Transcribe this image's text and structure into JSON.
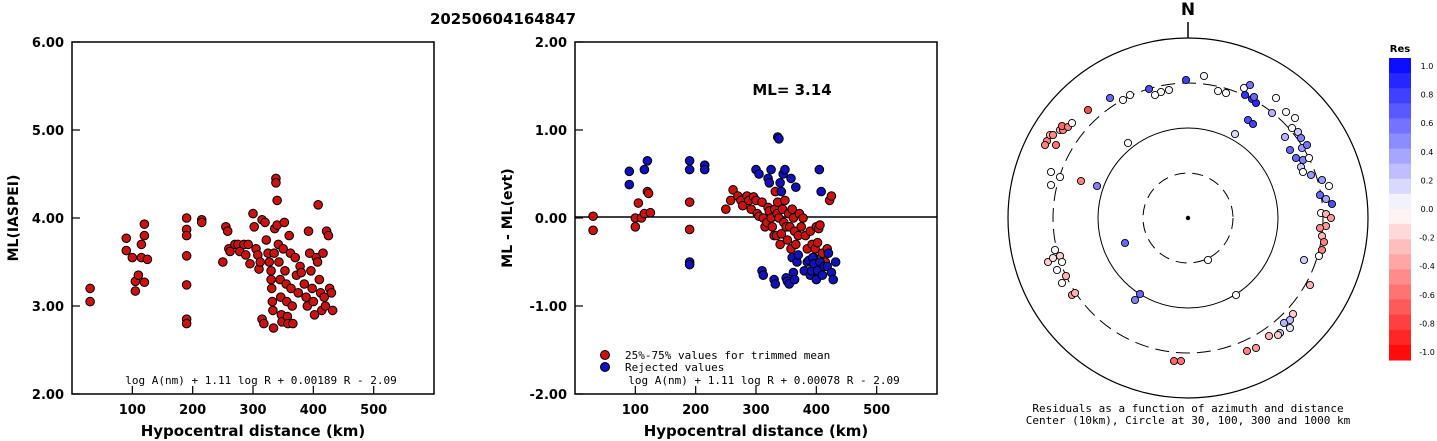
{
  "title": "20250604164847",
  "left_panel": {
    "ylabel": "ML(IASPEI)",
    "xlabel": "Hypocentral distance (km)",
    "formula": "log A(nm) + 1.11 log R + 0.00189 R - 2.09",
    "y_ticks": [
      "6.00",
      "5.00",
      "4.00",
      "3.00",
      "2.00"
    ],
    "x_ticks": [
      "100",
      "200",
      "300",
      "400",
      "500"
    ]
  },
  "mid_panel": {
    "ylabel": "ML - ML(evt)",
    "xlabel": "Hypocentral distance (km)",
    "ml_text": "ML= 3.14",
    "legend_red": "25%-75% values for trimmed mean",
    "legend_blue": "Rejected values",
    "formula": "log A(nm) + 1.11 log R + 0.00078 R - 2.09",
    "y_ticks": [
      "2.00",
      "1.00",
      "0.00",
      "-1.00",
      "-2.00"
    ],
    "x_ticks": [
      "100",
      "200",
      "300",
      "400",
      "500"
    ]
  },
  "polar_panel": {
    "north": "N",
    "caption1": "Residuals as a function of azimuth and distance",
    "caption2": "Center (10km), Circle at 30, 100, 300 and 1000 km"
  },
  "colorbar": {
    "title": "Res",
    "labels": [
      "1.0",
      "0.8",
      "0.6",
      "0.4",
      "0.2",
      "0.0",
      "-0.2",
      "-0.4",
      "-0.6",
      "-0.8",
      "-1.0"
    ]
  },
  "colors": {
    "red": "#cc1111",
    "blue": "#1111bb",
    "accepted": "#cc1111",
    "rejected": "#1111bb"
  },
  "chart_data": [
    {
      "type": "scatter",
      "title": "20250604164847",
      "xlabel": "Hypocentral distance (km)",
      "ylabel": "ML(IASPEI)",
      "xlim": [
        0,
        600
      ],
      "ylim": [
        2,
        6
      ],
      "points": [
        [
          30,
          3.2
        ],
        [
          30,
          3.05
        ],
        [
          90,
          3.77
        ],
        [
          90,
          3.63
        ],
        [
          100,
          3.55
        ],
        [
          105,
          3.17
        ],
        [
          105,
          3.28
        ],
        [
          110,
          3.35
        ],
        [
          115,
          3.7
        ],
        [
          115,
          3.55
        ],
        [
          120,
          3.27
        ],
        [
          120,
          3.8
        ],
        [
          120,
          3.93
        ],
        [
          125,
          3.53
        ],
        [
          190,
          4.0
        ],
        [
          190,
          3.87
        ],
        [
          190,
          3.8
        ],
        [
          190,
          3.57
        ],
        [
          190,
          3.24
        ],
        [
          190,
          2.85
        ],
        [
          190,
          2.8
        ],
        [
          215,
          3.98
        ],
        [
          215,
          3.95
        ],
        [
          250,
          3.5
        ],
        [
          255,
          3.9
        ],
        [
          258,
          3.85
        ],
        [
          260,
          3.65
        ],
        [
          262,
          3.62
        ],
        [
          270,
          3.7
        ],
        [
          275,
          3.7
        ],
        [
          278,
          3.62
        ],
        [
          285,
          3.7
        ],
        [
          288,
          3.58
        ],
        [
          292,
          3.7
        ],
        [
          295,
          3.48
        ],
        [
          300,
          4.05
        ],
        [
          302,
          3.9
        ],
        [
          305,
          3.65
        ],
        [
          308,
          3.58
        ],
        [
          310,
          3.42
        ],
        [
          312,
          3.5
        ],
        [
          315,
          3.98
        ],
        [
          315,
          2.85
        ],
        [
          318,
          2.8
        ],
        [
          320,
          3.95
        ],
        [
          322,
          3.75
        ],
        [
          325,
          3.6
        ],
        [
          327,
          3.5
        ],
        [
          330,
          3.4
        ],
        [
          330,
          3.3
        ],
        [
          331,
          3.2
        ],
        [
          332,
          3.05
        ],
        [
          333,
          2.95
        ],
        [
          334,
          2.75
        ],
        [
          335,
          3.6
        ],
        [
          336,
          3.88
        ],
        [
          338,
          4.45
        ],
        [
          338,
          4.4
        ],
        [
          340,
          4.2
        ],
        [
          340,
          3.92
        ],
        [
          342,
          3.7
        ],
        [
          343,
          3.5
        ],
        [
          345,
          3.3
        ],
        [
          346,
          3.1
        ],
        [
          347,
          2.9
        ],
        [
          348,
          2.82
        ],
        [
          350,
          3.65
        ],
        [
          352,
          3.95
        ],
        [
          353,
          3.4
        ],
        [
          355,
          3.25
        ],
        [
          356,
          3.05
        ],
        [
          357,
          2.88
        ],
        [
          358,
          2.8
        ],
        [
          360,
          3.8
        ],
        [
          362,
          3.6
        ],
        [
          363,
          3.2
        ],
        [
          365,
          3.0
        ],
        [
          366,
          2.8
        ],
        [
          370,
          3.55
        ],
        [
          372,
          3.35
        ],
        [
          375,
          3.15
        ],
        [
          378,
          3.45
        ],
        [
          380,
          3.38
        ],
        [
          385,
          3.25
        ],
        [
          388,
          3.1
        ],
        [
          390,
          3.0
        ],
        [
          392,
          3.85
        ],
        [
          394,
          3.6
        ],
        [
          396,
          3.4
        ],
        [
          398,
          3.2
        ],
        [
          400,
          3.05
        ],
        [
          402,
          2.9
        ],
        [
          405,
          3.55
        ],
        [
          407,
          3.5
        ],
        [
          408,
          4.15
        ],
        [
          410,
          3.3
        ],
        [
          412,
          3.15
        ],
        [
          414,
          2.95
        ],
        [
          416,
          3.6
        ],
        [
          418,
          3.1
        ],
        [
          420,
          3.0
        ],
        [
          422,
          3.85
        ],
        [
          425,
          3.8
        ],
        [
          427,
          3.2
        ],
        [
          430,
          3.15
        ],
        [
          432,
          2.95
        ]
      ]
    },
    {
      "type": "scatter",
      "xlabel": "Hypocentral distance (km)",
      "ylabel": "ML - ML(evt)",
      "xlim": [
        0,
        600
      ],
      "ylim": [
        -2,
        2
      ],
      "ML": 3.14,
      "series": [
        {
          "name": "25%-75% values for trimmed mean",
          "points": [
            [
              30,
              0.02
            ],
            [
              30,
              -0.14
            ],
            [
              100,
              0.0
            ],
            [
              100,
              -0.1
            ],
            [
              105,
              0.17
            ],
            [
              110,
              0.0
            ],
            [
              115,
              0.05
            ],
            [
              120,
              0.3
            ],
            [
              122,
              0.28
            ],
            [
              125,
              0.06
            ],
            [
              190,
              0.18
            ],
            [
              190,
              -0.13
            ],
            [
              250,
              0.1
            ],
            [
              258,
              0.2
            ],
            [
              262,
              0.32
            ],
            [
              270,
              0.25
            ],
            [
              275,
              0.2
            ],
            [
              278,
              0.14
            ],
            [
              285,
              0.25
            ],
            [
              288,
              0.2
            ],
            [
              292,
              0.1
            ],
            [
              296,
              0.24
            ],
            [
              300,
              0.2
            ],
            [
              302,
              0.05
            ],
            [
              305,
              0.02
            ],
            [
              310,
              0.18
            ],
            [
              312,
              0.0
            ],
            [
              315,
              -0.1
            ],
            [
              318,
              -0.05
            ],
            [
              320,
              0.12
            ],
            [
              322,
              0.08
            ],
            [
              325,
              0.0
            ],
            [
              327,
              -0.1
            ],
            [
              330,
              -0.2
            ],
            [
              331,
              0.1
            ],
            [
              332,
              0.3
            ],
            [
              334,
              -0.2
            ],
            [
              335,
              0.05
            ],
            [
              336,
              0.18
            ],
            [
              338,
              0.0
            ],
            [
              340,
              -0.3
            ],
            [
              342,
              -0.18
            ],
            [
              344,
              0.1
            ],
            [
              346,
              -0.05
            ],
            [
              348,
              0.2
            ],
            [
              350,
              -0.1
            ],
            [
              352,
              -0.25
            ],
            [
              354,
              0.05
            ],
            [
              356,
              -0.1
            ],
            [
              358,
              -0.35
            ],
            [
              360,
              0.1
            ],
            [
              362,
              0.0
            ],
            [
              364,
              -0.15
            ],
            [
              366,
              -0.3
            ],
            [
              370,
              -0.2
            ],
            [
              372,
              0.05
            ],
            [
              375,
              -0.1
            ],
            [
              378,
              0.0
            ],
            [
              382,
              -0.2
            ],
            [
              385,
              -0.35
            ],
            [
              390,
              -0.15
            ],
            [
              393,
              -0.3
            ],
            [
              396,
              -0.45
            ],
            [
              398,
              -0.35
            ],
            [
              400,
              -0.1
            ],
            [
              402,
              -0.28
            ],
            [
              404,
              -0.12
            ],
            [
              406,
              -0.08
            ],
            [
              410,
              -0.4
            ],
            [
              415,
              -0.5
            ],
            [
              418,
              -0.35
            ],
            [
              422,
              0.2
            ],
            [
              425,
              0.25
            ]
          ]
        },
        {
          "name": "Rejected values",
          "points": [
            [
              90,
              0.53
            ],
            [
              90,
              0.38
            ],
            [
              115,
              0.55
            ],
            [
              120,
              0.65
            ],
            [
              190,
              0.65
            ],
            [
              190,
              0.55
            ],
            [
              190,
              -0.5
            ],
            [
              190,
              -0.53
            ],
            [
              215,
              0.6
            ],
            [
              215,
              0.55
            ],
            [
              300,
              0.55
            ],
            [
              305,
              0.5
            ],
            [
              310,
              -0.6
            ],
            [
              312,
              -0.65
            ],
            [
              320,
              0.45
            ],
            [
              322,
              0.4
            ],
            [
              325,
              0.55
            ],
            [
              330,
              -0.7
            ],
            [
              332,
              -0.75
            ],
            [
              336,
              0.92
            ],
            [
              338,
              0.9
            ],
            [
              340,
              0.4
            ],
            [
              342,
              0.3
            ],
            [
              345,
              0.5
            ],
            [
              348,
              0.55
            ],
            [
              350,
              -0.68
            ],
            [
              352,
              -0.72
            ],
            [
              355,
              -0.75
            ],
            [
              358,
              0.45
            ],
            [
              360,
              -0.45
            ],
            [
              362,
              -0.62
            ],
            [
              364,
              -0.7
            ],
            [
              366,
              0.35
            ],
            [
              368,
              -0.5
            ],
            [
              370,
              -0.42
            ],
            [
              380,
              -0.6
            ],
            [
              385,
              -0.5
            ],
            [
              388,
              -0.48
            ],
            [
              390,
              -0.65
            ],
            [
              392,
              -0.6
            ],
            [
              394,
              -0.45
            ],
            [
              396,
              -0.52
            ],
            [
              400,
              -0.7
            ],
            [
              402,
              -0.6
            ],
            [
              405,
              0.55
            ],
            [
              406,
              -0.5
            ],
            [
              408,
              0.3
            ],
            [
              410,
              -0.65
            ],
            [
              413,
              -0.55
            ],
            [
              418,
              -0.55
            ],
            [
              420,
              -0.4
            ],
            [
              425,
              -0.62
            ],
            [
              428,
              -0.7
            ],
            [
              432,
              -0.5
            ]
          ]
        }
      ]
    },
    {
      "type": "scatter",
      "note_type": "polar",
      "rings_km": [
        30,
        100,
        300,
        1000
      ],
      "color_range": [
        -1,
        1
      ]
    }
  ]
}
